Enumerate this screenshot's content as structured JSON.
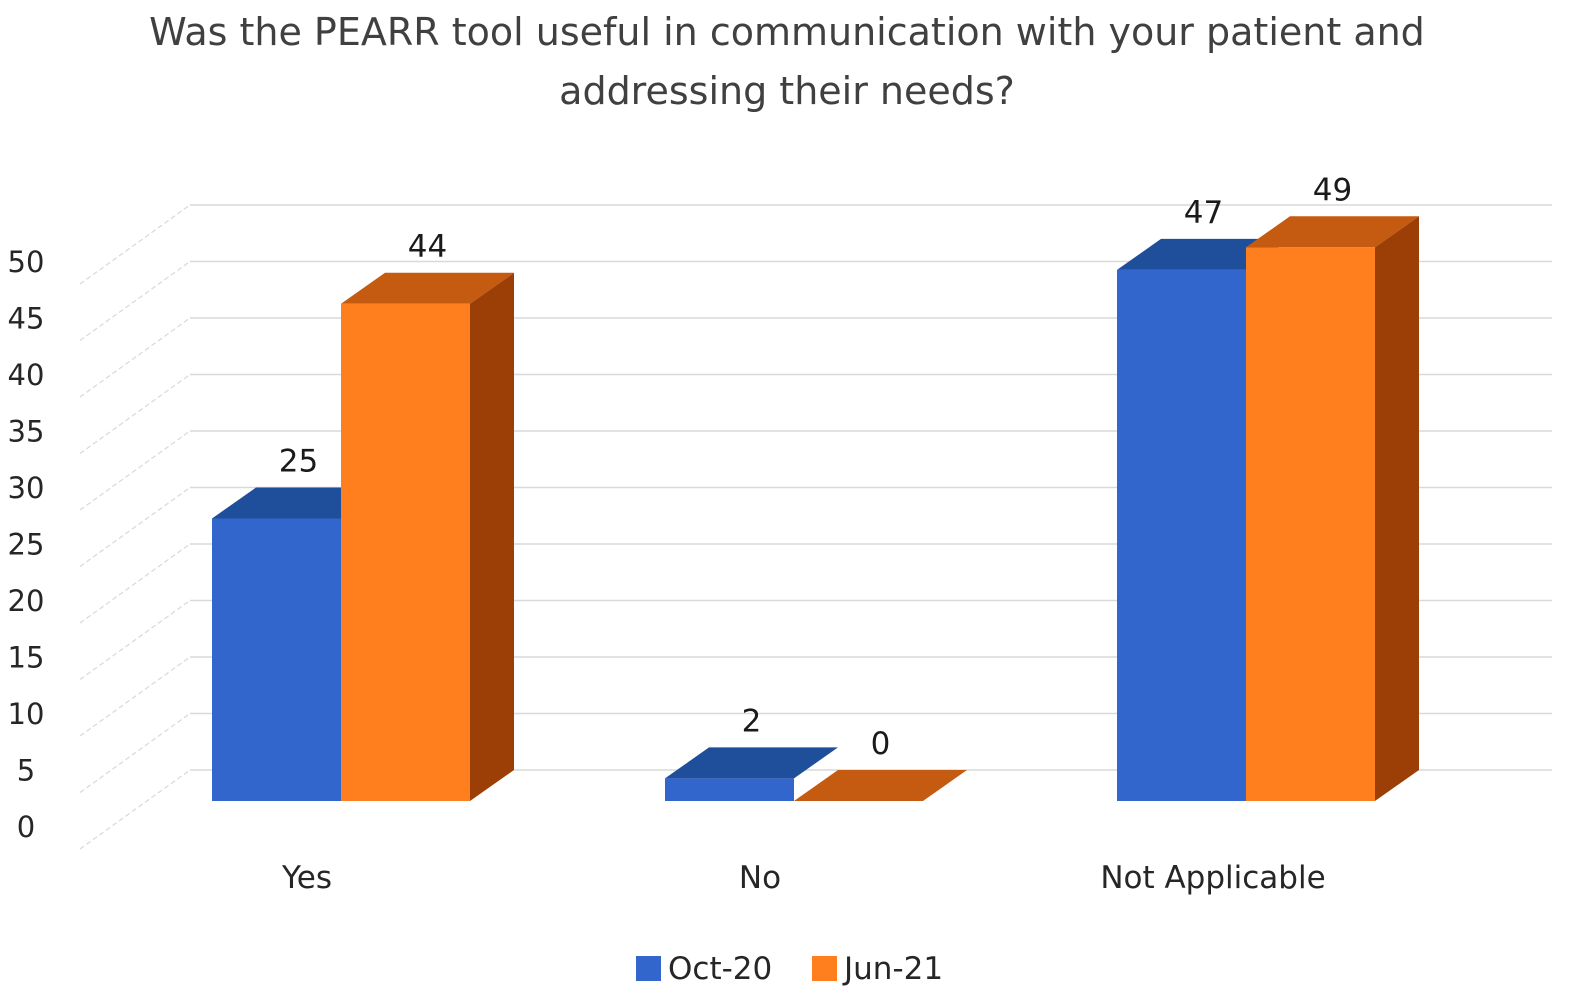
{
  "chart_data": {
    "type": "bar",
    "title_lines": [
      "Was the PEARR tool useful in communication with your patient and",
      "addressing their needs?"
    ],
    "categories": [
      "Yes",
      "No",
      "Not Applicable"
    ],
    "series": [
      {
        "name": "Oct-20",
        "values": [
          25,
          2,
          47
        ],
        "labels": [
          "25",
          "2",
          "47"
        ],
        "color": "#3366CC",
        "top_color": "#1F4E9A"
      },
      {
        "name": "Jun-21",
        "values": [
          44,
          0,
          49
        ],
        "labels": [
          "44",
          "0",
          "49"
        ],
        "color": "#FF7F1F",
        "top_color": "#C55A11",
        "side_color": "#9C3F06"
      }
    ],
    "ylim": [
      0,
      50
    ],
    "yticks": [
      "0",
      "5",
      "10",
      "15",
      "20",
      "25",
      "30",
      "35",
      "40",
      "45",
      "50"
    ],
    "grid": true,
    "legend_position": "bottom-center",
    "gridline_color": "#D9D9D9"
  }
}
